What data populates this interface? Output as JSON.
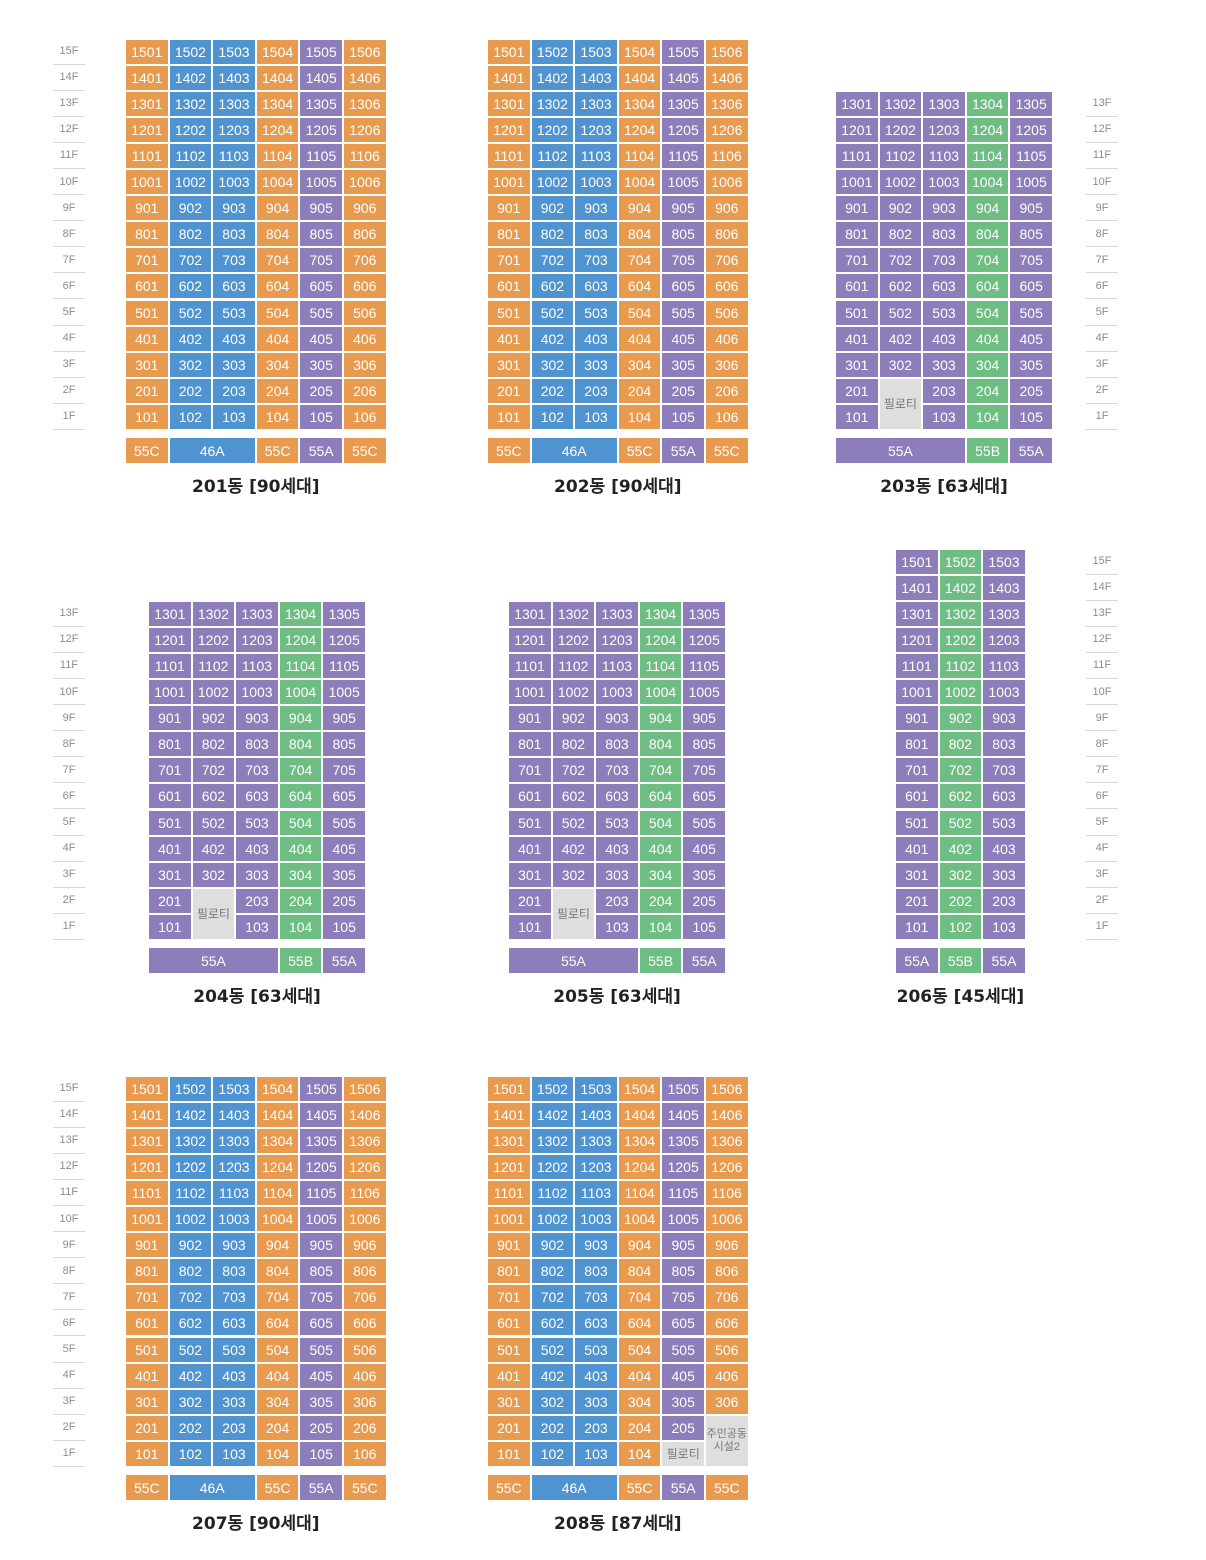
{
  "colors": {
    "C": "#e89a4f",
    "A46": "#4f94d1",
    "A55": "#8d7dba",
    "B55": "#6ebd82",
    "P": "#dedede"
  },
  "buildings": [
    {
      "title": "201동 [90세대]",
      "floors": 15,
      "cols": [
        "C",
        "A46",
        "A46",
        "C",
        "A55",
        "C"
      ],
      "overrides": [],
      "types": [
        {
          "label": "55C",
          "type": "C",
          "span": 1
        },
        {
          "label": "46A",
          "type": "A46",
          "span": 2
        },
        {
          "label": "55C",
          "type": "C",
          "span": 1
        },
        {
          "label": "55A",
          "type": "A55",
          "span": 1
        },
        {
          "label": "55C",
          "type": "C",
          "span": 1
        }
      ],
      "scale_side": "left"
    },
    {
      "title": "202동 [90세대]",
      "floors": 15,
      "cols": [
        "C",
        "A46",
        "A46",
        "C",
        "A55",
        "C"
      ],
      "overrides": [],
      "types": [
        {
          "label": "55C",
          "type": "C",
          "span": 1
        },
        {
          "label": "46A",
          "type": "A46",
          "span": 2
        },
        {
          "label": "55C",
          "type": "C",
          "span": 1
        },
        {
          "label": "55A",
          "type": "A55",
          "span": 1
        },
        {
          "label": "55C",
          "type": "C",
          "span": 1
        }
      ],
      "scale_side": "none"
    },
    {
      "title": "203동 [63세대]",
      "floors": 13,
      "cols": [
        "A55",
        "A55",
        "A55",
        "B55",
        "A55"
      ],
      "overrides": [
        {
          "text": "필로티",
          "floor": 1,
          "col": 2,
          "floors": 2,
          "cols": 1,
          "type": "P"
        }
      ],
      "types": [
        {
          "label": "55A",
          "type": "A55",
          "span": 3
        },
        {
          "label": "55B",
          "type": "B55",
          "span": 1
        },
        {
          "label": "55A",
          "type": "A55",
          "span": 1
        }
      ],
      "scale_side": "right"
    },
    {
      "title": "204동 [63세대]",
      "floors": 13,
      "cols": [
        "A55",
        "A55",
        "A55",
        "B55",
        "A55"
      ],
      "overrides": [
        {
          "text": "필로티",
          "floor": 1,
          "col": 2,
          "floors": 2,
          "cols": 1,
          "type": "P"
        }
      ],
      "types": [
        {
          "label": "55A",
          "type": "A55",
          "span": 3
        },
        {
          "label": "55B",
          "type": "B55",
          "span": 1
        },
        {
          "label": "55A",
          "type": "A55",
          "span": 1
        }
      ],
      "scale_side": "left"
    },
    {
      "title": "205동 [63세대]",
      "floors": 13,
      "cols": [
        "A55",
        "A55",
        "A55",
        "B55",
        "A55"
      ],
      "overrides": [
        {
          "text": "필로티",
          "floor": 1,
          "col": 2,
          "floors": 2,
          "cols": 1,
          "type": "P"
        }
      ],
      "types": [
        {
          "label": "55A",
          "type": "A55",
          "span": 3
        },
        {
          "label": "55B",
          "type": "B55",
          "span": 1
        },
        {
          "label": "55A",
          "type": "A55",
          "span": 1
        }
      ],
      "scale_side": "none"
    },
    {
      "title": "206동 [45세대]",
      "floors": 15,
      "cols": [
        "A55",
        "B55",
        "A55"
      ],
      "overrides": [],
      "types": [
        {
          "label": "55A",
          "type": "A55",
          "span": 1
        },
        {
          "label": "55B",
          "type": "B55",
          "span": 1
        },
        {
          "label": "55A",
          "type": "A55",
          "span": 1
        }
      ],
      "scale_side": "right"
    },
    {
      "title": "207동 [90세대]",
      "floors": 15,
      "cols": [
        "C",
        "A46",
        "A46",
        "C",
        "A55",
        "C"
      ],
      "overrides": [],
      "types": [
        {
          "label": "55C",
          "type": "C",
          "span": 1
        },
        {
          "label": "46A",
          "type": "A46",
          "span": 2
        },
        {
          "label": "55C",
          "type": "C",
          "span": 1
        },
        {
          "label": "55A",
          "type": "A55",
          "span": 1
        },
        {
          "label": "55C",
          "type": "C",
          "span": 1
        }
      ],
      "scale_side": "left"
    },
    {
      "title": "208동 [87세대]",
      "floors": 15,
      "cols": [
        "C",
        "A46",
        "A46",
        "C",
        "A55",
        "C"
      ],
      "overrides": [
        {
          "text": "필로티",
          "floor": 1,
          "col": 5,
          "floors": 1,
          "cols": 1,
          "type": "P"
        },
        {
          "text": "주민공동\n시설2",
          "floor": 1,
          "col": 6,
          "floors": 2,
          "cols": 1,
          "type": "P"
        }
      ],
      "types": [
        {
          "label": "55C",
          "type": "C",
          "span": 1
        },
        {
          "label": "46A",
          "type": "A46",
          "span": 2
        },
        {
          "label": "55C",
          "type": "C",
          "span": 1
        },
        {
          "label": "55A",
          "type": "A55",
          "span": 1
        },
        {
          "label": "55C",
          "type": "C",
          "span": 1
        }
      ],
      "scale_side": "none"
    }
  ]
}
